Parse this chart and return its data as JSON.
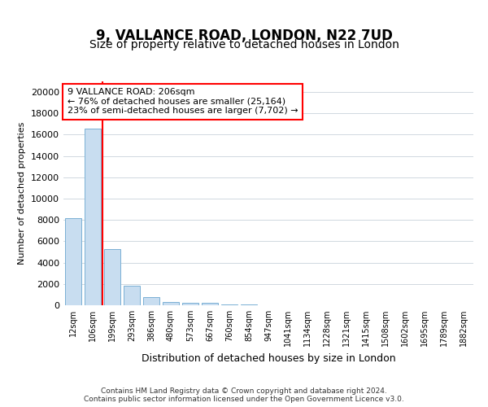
{
  "title": "9, VALLANCE ROAD, LONDON, N22 7UD",
  "subtitle": "Size of property relative to detached houses in London",
  "xlabel": "Distribution of detached houses by size in London",
  "ylabel": "Number of detached properties",
  "categories": [
    "12sqm",
    "106sqm",
    "199sqm",
    "293sqm",
    "386sqm",
    "480sqm",
    "573sqm",
    "667sqm",
    "760sqm",
    "854sqm",
    "947sqm",
    "1041sqm",
    "1134sqm",
    "1228sqm",
    "1321sqm",
    "1415sqm",
    "1508sqm",
    "1602sqm",
    "1695sqm",
    "1789sqm",
    "1882sqm"
  ],
  "values": [
    8200,
    16600,
    5300,
    1850,
    750,
    300,
    200,
    200,
    100,
    50,
    0,
    0,
    0,
    0,
    0,
    0,
    0,
    0,
    0,
    0,
    0
  ],
  "bar_color": "#c8ddf0",
  "bar_edge_color": "#7ab0d4",
  "red_line_x": 1.5,
  "annotation_text": "9 VALLANCE ROAD: 206sqm\n← 76% of detached houses are smaller (25,164)\n23% of semi-detached houses are larger (7,702) →",
  "annotation_box_color": "white",
  "annotation_box_edge_color": "red",
  "ylim": [
    0,
    21000
  ],
  "yticks": [
    0,
    2000,
    4000,
    6000,
    8000,
    10000,
    12000,
    14000,
    16000,
    18000,
    20000
  ],
  "footer": "Contains HM Land Registry data © Crown copyright and database right 2024.\nContains public sector information licensed under the Open Government Licence v3.0.",
  "background_color": "white",
  "plot_background_color": "white",
  "grid_color": "#d0d8e0",
  "title_fontsize": 12,
  "subtitle_fontsize": 10
}
